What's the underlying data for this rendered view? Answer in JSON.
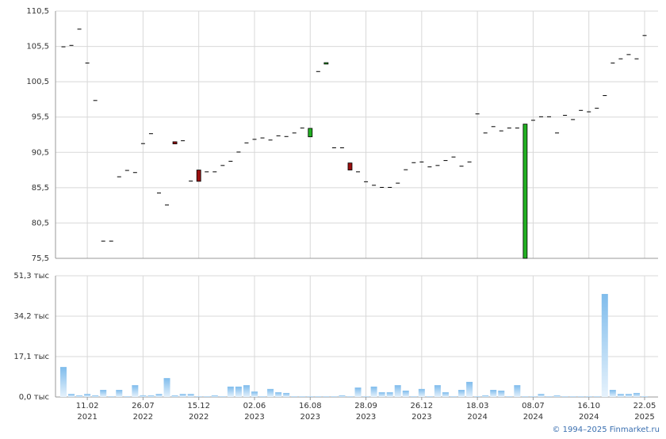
{
  "chart_data": [
    {
      "type": "candlestick",
      "categories": [
        null,
        null,
        null,
        [
          "11.02",
          "2021"
        ],
        null,
        null,
        null,
        null,
        null,
        null,
        [
          "26.07",
          "2022"
        ],
        null,
        null,
        null,
        null,
        null,
        null,
        [
          "15.12",
          "2022"
        ],
        null,
        null,
        null,
        null,
        null,
        null,
        [
          "02.06",
          "2023"
        ],
        null,
        null,
        null,
        null,
        null,
        null,
        [
          "16.08",
          "2023"
        ],
        null,
        null,
        null,
        null,
        null,
        null,
        [
          "28.09",
          "2023"
        ],
        null,
        null,
        null,
        null,
        null,
        null,
        [
          "26.12",
          "2023"
        ],
        null,
        null,
        null,
        null,
        null,
        null,
        [
          "18.03",
          "2024"
        ],
        null,
        null,
        null,
        null,
        null,
        null,
        [
          "08.07",
          "2024"
        ],
        null,
        null,
        null,
        null,
        null,
        null,
        [
          "16.10",
          "2024"
        ],
        null,
        null,
        null,
        null,
        null,
        null,
        [
          "22.05",
          "2025"
        ]
      ],
      "open": [
        105.5,
        105.7,
        108.0,
        103.2,
        97.9,
        78.0,
        78.0,
        87.1,
        88.0,
        87.7,
        91.8,
        93.2,
        84.8,
        83.1,
        92.0,
        92.2,
        86.5,
        88.0,
        87.8,
        87.8,
        88.7,
        89.3,
        90.6,
        91.9,
        92.4,
        92.6,
        92.3,
        92.9,
        92.8,
        93.3,
        94.0,
        92.7,
        102.0,
        103.0,
        91.2,
        91.2,
        89.0,
        87.8,
        86.4,
        85.9,
        85.6,
        85.6,
        86.2,
        88.1,
        89.1,
        89.2,
        88.5,
        88.7,
        89.4,
        89.9,
        88.6,
        89.2,
        96.0,
        93.3,
        94.2,
        93.6,
        94.0,
        94.0,
        75.5,
        95.1,
        95.6,
        95.6,
        93.3,
        95.8,
        95.2,
        96.5,
        96.3,
        96.8,
        98.6,
        103.2,
        103.8,
        104.4,
        103.8,
        107.1
      ],
      "close": [
        105.5,
        105.7,
        108.0,
        103.2,
        97.9,
        78.0,
        78.0,
        87.1,
        88.0,
        87.7,
        91.8,
        93.2,
        84.8,
        83.1,
        91.7,
        92.2,
        86.5,
        86.4,
        87.8,
        87.8,
        88.7,
        89.3,
        90.6,
        91.9,
        92.4,
        92.6,
        92.3,
        92.9,
        92.8,
        93.3,
        94.0,
        93.9,
        102.0,
        103.2,
        91.2,
        91.2,
        88.0,
        87.8,
        86.4,
        85.9,
        85.6,
        85.6,
        86.2,
        88.1,
        89.1,
        89.2,
        88.5,
        88.7,
        89.4,
        89.9,
        88.6,
        89.2,
        96.0,
        93.3,
        94.2,
        93.6,
        94.0,
        94.0,
        94.5,
        95.1,
        95.6,
        95.6,
        93.3,
        95.8,
        95.2,
        96.5,
        96.3,
        96.8,
        98.6,
        103.2,
        103.8,
        104.4,
        103.8,
        107.1
      ],
      "up_color": "#22b022",
      "down_color": "#9a0f0f",
      "flat_color": "#000000",
      "ylim": [
        75.5,
        110.5
      ],
      "yticks": [
        {
          "value": 75.5,
          "label": "75,5"
        },
        {
          "value": 80.5,
          "label": "80,5"
        },
        {
          "value": 85.5,
          "label": "85,5"
        },
        {
          "value": 90.5,
          "label": "90,5"
        },
        {
          "value": 95.5,
          "label": "95,5"
        },
        {
          "value": 100.5,
          "label": "100,5"
        },
        {
          "value": 105.5,
          "label": "105,5"
        },
        {
          "value": 110.5,
          "label": "110,5"
        }
      ],
      "grid": true
    },
    {
      "type": "bar",
      "values": [
        12.7,
        1.3,
        0.7,
        1.3,
        0.7,
        3.0,
        0.3,
        3.0,
        0.3,
        5.0,
        0.7,
        0.7,
        1.3,
        8.0,
        0.7,
        1.3,
        1.3,
        0.3,
        0.3,
        0.7,
        0.3,
        4.4,
        4.4,
        5.0,
        2.3,
        0.3,
        3.4,
        2.0,
        1.7,
        0.3,
        0.3,
        0.3,
        0.3,
        0.3,
        0.3,
        0.7,
        0.3,
        4.0,
        0.3,
        4.4,
        2.0,
        2.0,
        5.0,
        2.7,
        0.3,
        3.4,
        0.3,
        5.0,
        2.0,
        0.3,
        3.0,
        6.4,
        0.3,
        0.7,
        3.0,
        2.7,
        0.3,
        5.0,
        0.3,
        0.3,
        1.3,
        0.3,
        0.7,
        0.3,
        0.3,
        0.3,
        0.3,
        0.3,
        43.6,
        3.0,
        1.3,
        1.3,
        1.7,
        0.3
      ],
      "color": "#8cc4ee",
      "ylim": [
        0,
        51.3
      ],
      "yticks": [
        {
          "value": 0,
          "label": "0,0 тыс"
        },
        {
          "value": 17.1,
          "label": "17,1 тыс"
        },
        {
          "value": 34.2,
          "label": "34,2 тыс"
        },
        {
          "value": 51.3,
          "label": "51,3 тыс"
        }
      ],
      "grid": true
    }
  ],
  "footer": "© 1994–2025 Finmarket.ru"
}
